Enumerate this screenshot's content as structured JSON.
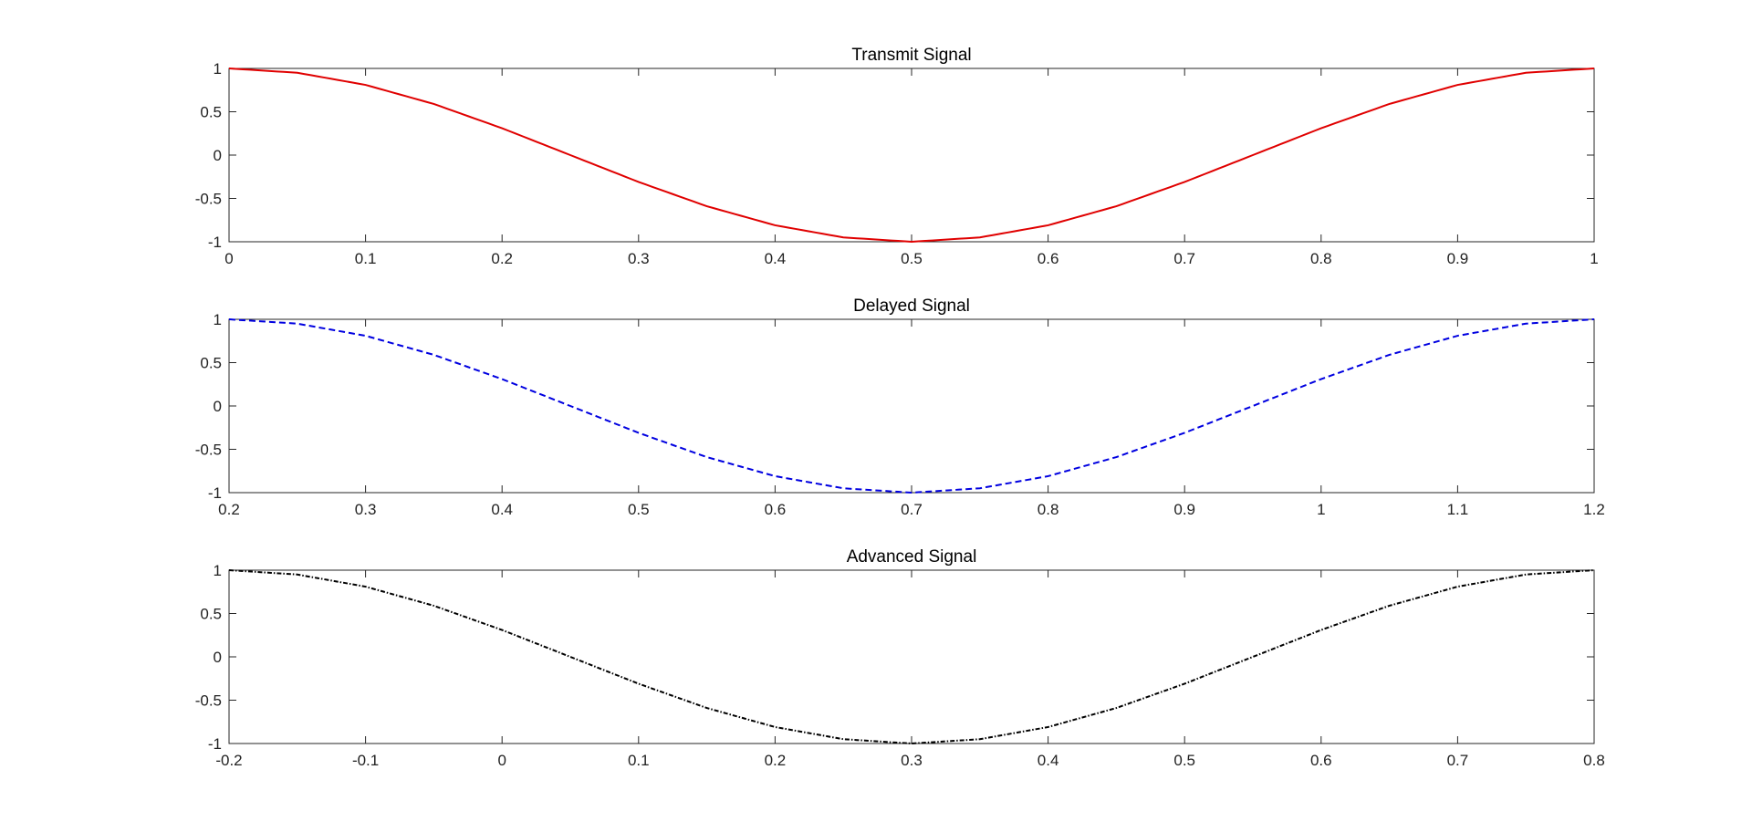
{
  "chart_data": [
    {
      "type": "line",
      "title": "Transmit Signal",
      "xlabel": "",
      "ylabel": "",
      "xlim": [
        0,
        1
      ],
      "ylim": [
        -1,
        1
      ],
      "x_ticks": [
        "0",
        "0.1",
        "0.2",
        "0.3",
        "0.4",
        "0.5",
        "0.6",
        "0.7",
        "0.8",
        "0.9",
        "1"
      ],
      "y_ticks": [
        "1",
        "0.5",
        "0",
        "-0.5",
        "-1"
      ],
      "grid": false,
      "series": [
        {
          "color": "#e00000",
          "line_style": "solid",
          "x": [
            0,
            0.05,
            0.1,
            0.15,
            0.2,
            0.25,
            0.3,
            0.35,
            0.4,
            0.45,
            0.5,
            0.55,
            0.6,
            0.65,
            0.7,
            0.75,
            0.8,
            0.85,
            0.9,
            0.95,
            1
          ],
          "y": [
            1,
            0.95,
            0.81,
            0.59,
            0.31,
            0,
            -0.31,
            -0.59,
            -0.81,
            -0.95,
            -1,
            -0.95,
            -0.81,
            -0.59,
            -0.31,
            0,
            0.31,
            0.59,
            0.81,
            0.95,
            1
          ]
        }
      ]
    },
    {
      "type": "line",
      "title": "Delayed Signal",
      "xlabel": "",
      "ylabel": "",
      "xlim": [
        0.2,
        1.2
      ],
      "ylim": [
        -1,
        1
      ],
      "x_ticks": [
        "0.2",
        "0.3",
        "0.4",
        "0.5",
        "0.6",
        "0.7",
        "0.8",
        "0.9",
        "1",
        "1.1",
        "1.2"
      ],
      "y_ticks": [
        "1",
        "0.5",
        "0",
        "-0.5",
        "-1"
      ],
      "grid": false,
      "series": [
        {
          "color": "#0000e0",
          "line_style": "dashed",
          "x": [
            0.2,
            0.25,
            0.3,
            0.35,
            0.4,
            0.45,
            0.5,
            0.55,
            0.6,
            0.65,
            0.7,
            0.75,
            0.8,
            0.85,
            0.9,
            0.95,
            1,
            1.05,
            1.1,
            1.15,
            1.2
          ],
          "y": [
            1,
            0.95,
            0.81,
            0.59,
            0.31,
            0,
            -0.31,
            -0.59,
            -0.81,
            -0.95,
            -1,
            -0.95,
            -0.81,
            -0.59,
            -0.31,
            0,
            0.31,
            0.59,
            0.81,
            0.95,
            1
          ]
        }
      ]
    },
    {
      "type": "line",
      "title": "Advanced Signal",
      "xlabel": "",
      "ylabel": "",
      "xlim": [
        -0.2,
        0.8
      ],
      "ylim": [
        -1,
        1
      ],
      "x_ticks": [
        "-0.2",
        "-0.1",
        "0",
        "0.1",
        "0.2",
        "0.3",
        "0.4",
        "0.5",
        "0.6",
        "0.7",
        "0.8"
      ],
      "y_ticks": [
        "1",
        "0.5",
        "0",
        "-0.5",
        "-1"
      ],
      "grid": false,
      "series": [
        {
          "color": "#000000",
          "line_style": "dash-dot",
          "x": [
            -0.2,
            -0.15,
            -0.1,
            -0.05,
            0,
            0.05,
            0.1,
            0.15,
            0.2,
            0.25,
            0.3,
            0.35,
            0.4,
            0.45,
            0.5,
            0.55,
            0.6,
            0.65,
            0.7,
            0.75,
            0.8
          ],
          "y": [
            1,
            0.95,
            0.81,
            0.59,
            0.31,
            0,
            -0.31,
            -0.59,
            -0.81,
            -0.95,
            -1,
            -0.95,
            -0.81,
            -0.59,
            -0.31,
            0,
            0.31,
            0.59,
            0.81,
            0.95,
            1
          ]
        }
      ]
    }
  ]
}
